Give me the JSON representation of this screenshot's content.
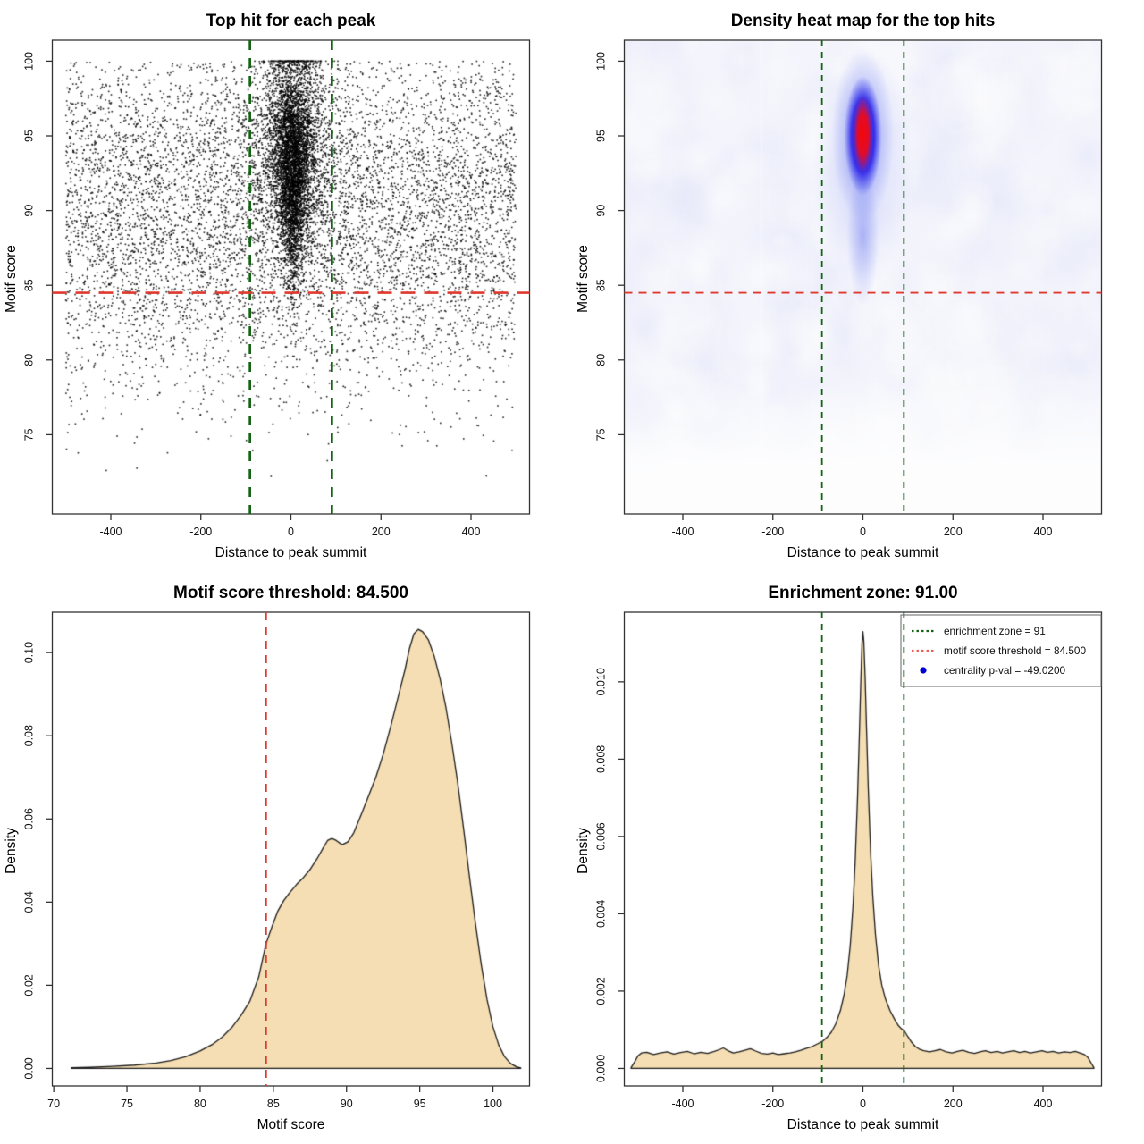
{
  "figure": {
    "background": "#FFFFFF"
  },
  "colors": {
    "box": "#333333",
    "tick": "#333333",
    "text": "#000000",
    "point_black": "#000000",
    "density_fill": "#F5DEB3",
    "density_stroke": "#1A1A1A",
    "threshold_red": "#E03A30",
    "zone_green": "#156415",
    "legend_blue": "#0000D8",
    "heat_base": "#F3F4FC",
    "heat_mottle": "#CDD2F5",
    "heat_blue": "#241FE4",
    "heat_red": "#F50808"
  },
  "chart_data": [
    {
      "id": "top-hits-scatter",
      "type": "scatter",
      "title": "Top hit for each peak",
      "xlabel": "Distance to peak summit",
      "ylabel": "Motif score",
      "xlim": [
        -530,
        530
      ],
      "ylim": [
        69.7,
        101.4
      ],
      "x_ticks": [
        -400,
        -200,
        0,
        200,
        400
      ],
      "y_ticks": [
        75,
        80,
        85,
        90,
        95,
        100
      ],
      "enrichment_zone_x": [
        -91,
        91
      ],
      "motif_score_threshold_y": 84.5,
      "line_weight": "thick",
      "points": {
        "seed": 7,
        "n_background": 7000,
        "n_cluster": 5600,
        "background": {
          "x_min": -500,
          "x_max": 500,
          "y_mean": 90.2,
          "y_sd": 6.0,
          "y_min": 72.2,
          "y_max": 100
        },
        "cluster": {
          "x_mean": 4,
          "x_sd_base": 10,
          "x_sd_slope": 1.25,
          "wide_frac": 0.22,
          "x_sd_wide": 55,
          "y_mean": 93.3,
          "y_sd": 3.6,
          "y_min": 80.8,
          "y_max": 100
        }
      }
    },
    {
      "id": "density-heatmap",
      "type": "heatmap",
      "title": "Density heat map for the top hits",
      "xlabel": "Distance to peak summit",
      "ylabel": "Motif score",
      "xlim": [
        -530,
        530
      ],
      "ylim": [
        69.7,
        101.4
      ],
      "x_ticks": [
        -400,
        -200,
        0,
        200,
        400
      ],
      "y_ticks": [
        75,
        80,
        85,
        90,
        95,
        100
      ],
      "enrichment_zone_x": [
        -91,
        91
      ],
      "motif_score_threshold_y": 84.5,
      "line_weight": "thin",
      "hotspot": {
        "x": 0,
        "y_core": 95.1,
        "y_blue": 95.0,
        "y_halo": 93.0,
        "y_tail": 88.3
      },
      "noise_seed": 11,
      "seam_x": -227
    },
    {
      "id": "motif-score-density",
      "type": "area",
      "title": "Motif score threshold: 84.500",
      "xlabel": "Motif score",
      "ylabel": "Density",
      "xlim": [
        69.9,
        102.5
      ],
      "ylim": [
        -0.0042,
        0.1097
      ],
      "x_ticks": [
        70,
        75,
        80,
        85,
        90,
        95,
        100
      ],
      "y_ticks": [
        0.0,
        0.02,
        0.04,
        0.06,
        0.08,
        0.1
      ],
      "y_tick_labels": [
        "0.00",
        "0.02",
        "0.04",
        "0.06",
        "0.08",
        "0.10"
      ],
      "threshold_x": 84.5,
      "curve": [
        [
          71.2,
          0.0002
        ],
        [
          72.5,
          0.0003
        ],
        [
          74,
          0.0005
        ],
        [
          75.5,
          0.0008
        ],
        [
          77,
          0.0013
        ],
        [
          78,
          0.0019
        ],
        [
          79,
          0.0028
        ],
        [
          80,
          0.0042
        ],
        [
          80.8,
          0.0057
        ],
        [
          81.5,
          0.0075
        ],
        [
          82.2,
          0.01
        ],
        [
          82.8,
          0.0128
        ],
        [
          83.4,
          0.0162
        ],
        [
          84,
          0.022
        ],
        [
          84.5,
          0.03
        ],
        [
          84.9,
          0.034
        ],
        [
          85.3,
          0.0378
        ],
        [
          85.7,
          0.0403
        ],
        [
          86.1,
          0.0422
        ],
        [
          86.6,
          0.0443
        ],
        [
          87,
          0.0457
        ],
        [
          87.5,
          0.0478
        ],
        [
          88,
          0.0505
        ],
        [
          88.4,
          0.053
        ],
        [
          88.7,
          0.0548
        ],
        [
          89,
          0.0553
        ],
        [
          89.3,
          0.0548
        ],
        [
          89.7,
          0.0538
        ],
        [
          90.1,
          0.0545
        ],
        [
          90.5,
          0.0567
        ],
        [
          91,
          0.061
        ],
        [
          91.5,
          0.0655
        ],
        [
          92,
          0.07
        ],
        [
          92.5,
          0.0755
        ],
        [
          93,
          0.082
        ],
        [
          93.5,
          0.089
        ],
        [
          94,
          0.096
        ],
        [
          94.3,
          0.101
        ],
        [
          94.6,
          0.1045
        ],
        [
          94.9,
          0.1056
        ],
        [
          95.2,
          0.105
        ],
        [
          95.6,
          0.103
        ],
        [
          96,
          0.099
        ],
        [
          96.4,
          0.0935
        ],
        [
          96.8,
          0.0866
        ],
        [
          97.2,
          0.078
        ],
        [
          97.6,
          0.0685
        ],
        [
          98,
          0.0575
        ],
        [
          98.4,
          0.046
        ],
        [
          98.8,
          0.035
        ],
        [
          99.2,
          0.025
        ],
        [
          99.6,
          0.0165
        ],
        [
          100,
          0.01
        ],
        [
          100.4,
          0.0056
        ],
        [
          100.8,
          0.0028
        ],
        [
          101.2,
          0.0012
        ],
        [
          101.6,
          0.0004
        ],
        [
          101.9,
          0.0001
        ]
      ]
    },
    {
      "id": "summit-distance-density",
      "type": "area",
      "title": "Enrichment zone: 91.00",
      "xlabel": "Distance to peak summit",
      "ylabel": "Density",
      "xlim": [
        -530,
        530
      ],
      "ylim": [
        -0.000452,
        0.0118
      ],
      "x_ticks": [
        -400,
        -200,
        0,
        200,
        400
      ],
      "y_ticks": [
        0.0,
        0.002,
        0.004,
        0.006,
        0.008,
        0.01
      ],
      "y_tick_labels": [
        "0.000",
        "0.002",
        "0.004",
        "0.006",
        "0.008",
        "0.010"
      ],
      "enrichment_zone_x": [
        -91,
        91
      ],
      "curve": [
        [
          -515,
          2e-05
        ],
        [
          -508,
          0.00015
        ],
        [
          -500,
          0.00032
        ],
        [
          -492,
          0.0004
        ],
        [
          -480,
          0.00042
        ],
        [
          -465,
          0.00036
        ],
        [
          -450,
          0.0004
        ],
        [
          -435,
          0.00043
        ],
        [
          -420,
          0.00037
        ],
        [
          -405,
          0.00041
        ],
        [
          -390,
          0.00044
        ],
        [
          -375,
          0.00038
        ],
        [
          -360,
          0.00042
        ],
        [
          -345,
          0.00039
        ],
        [
          -330,
          0.00044
        ],
        [
          -318,
          0.00049
        ],
        [
          -310,
          0.00053
        ],
        [
          -300,
          0.00046
        ],
        [
          -288,
          0.0004
        ],
        [
          -275,
          0.00043
        ],
        [
          -262,
          0.00047
        ],
        [
          -250,
          0.00051
        ],
        [
          -238,
          0.00045
        ],
        [
          -225,
          0.00039
        ],
        [
          -212,
          0.00037
        ],
        [
          -200,
          0.0004
        ],
        [
          -188,
          0.00036
        ],
        [
          -175,
          0.00038
        ],
        [
          -162,
          0.0004
        ],
        [
          -150,
          0.00043
        ],
        [
          -138,
          0.00047
        ],
        [
          -125,
          0.00052
        ],
        [
          -112,
          0.00057
        ],
        [
          -100,
          0.00064
        ],
        [
          -90,
          0.0007
        ],
        [
          -80,
          0.0008
        ],
        [
          -70,
          0.00094
        ],
        [
          -60,
          0.00116
        ],
        [
          -50,
          0.0015
        ],
        [
          -42,
          0.0019
        ],
        [
          -35,
          0.0024
        ],
        [
          -28,
          0.0032
        ],
        [
          -22,
          0.0042
        ],
        [
          -17,
          0.0054
        ],
        [
          -12,
          0.007
        ],
        [
          -8,
          0.0086
        ],
        [
          -5,
          0.0099
        ],
        [
          -2,
          0.011
        ],
        [
          0,
          0.0113
        ],
        [
          2,
          0.01105
        ],
        [
          5,
          0.0101
        ],
        [
          8,
          0.0088
        ],
        [
          12,
          0.0072
        ],
        [
          17,
          0.0056
        ],
        [
          22,
          0.00445
        ],
        [
          28,
          0.00345
        ],
        [
          35,
          0.00265
        ],
        [
          42,
          0.00215
        ],
        [
          50,
          0.0018
        ],
        [
          60,
          0.0015
        ],
        [
          70,
          0.00128
        ],
        [
          78,
          0.00112
        ],
        [
          85,
          0.00103
        ],
        [
          92,
          0.00097
        ],
        [
          100,
          0.00082
        ],
        [
          108,
          0.00068
        ],
        [
          116,
          0.00057
        ],
        [
          125,
          0.0005
        ],
        [
          135,
          0.00046
        ],
        [
          148,
          0.00043
        ],
        [
          160,
          0.00046
        ],
        [
          172,
          0.00049
        ],
        [
          185,
          0.00043
        ],
        [
          198,
          0.0004
        ],
        [
          210,
          0.00044
        ],
        [
          222,
          0.00047
        ],
        [
          235,
          0.00042
        ],
        [
          248,
          0.00039
        ],
        [
          260,
          0.00043
        ],
        [
          272,
          0.00046
        ],
        [
          285,
          0.00041
        ],
        [
          298,
          0.00044
        ],
        [
          310,
          0.0004
        ],
        [
          322,
          0.00043
        ],
        [
          335,
          0.00046
        ],
        [
          348,
          0.00041
        ],
        [
          360,
          0.00044
        ],
        [
          372,
          0.0004
        ],
        [
          385,
          0.00043
        ],
        [
          398,
          0.00046
        ],
        [
          410,
          0.00042
        ],
        [
          422,
          0.00044
        ],
        [
          435,
          0.0004
        ],
        [
          448,
          0.00043
        ],
        [
          460,
          0.00041
        ],
        [
          472,
          0.00044
        ],
        [
          482,
          0.0004
        ],
        [
          492,
          0.00036
        ],
        [
          500,
          0.00028
        ],
        [
          508,
          0.00012
        ],
        [
          513,
          2e-05
        ]
      ],
      "legend": {
        "items": [
          {
            "label": "enrichment zone = 91",
            "glyph": "dotted-line",
            "color": "#156415"
          },
          {
            "label": "motif score threshold = 84.500",
            "glyph": "dotted-line",
            "color": "#E8615A"
          },
          {
            "label": "centrality p-val = -49.0200",
            "glyph": "dot",
            "color": "#0000D8"
          }
        ]
      }
    }
  ]
}
